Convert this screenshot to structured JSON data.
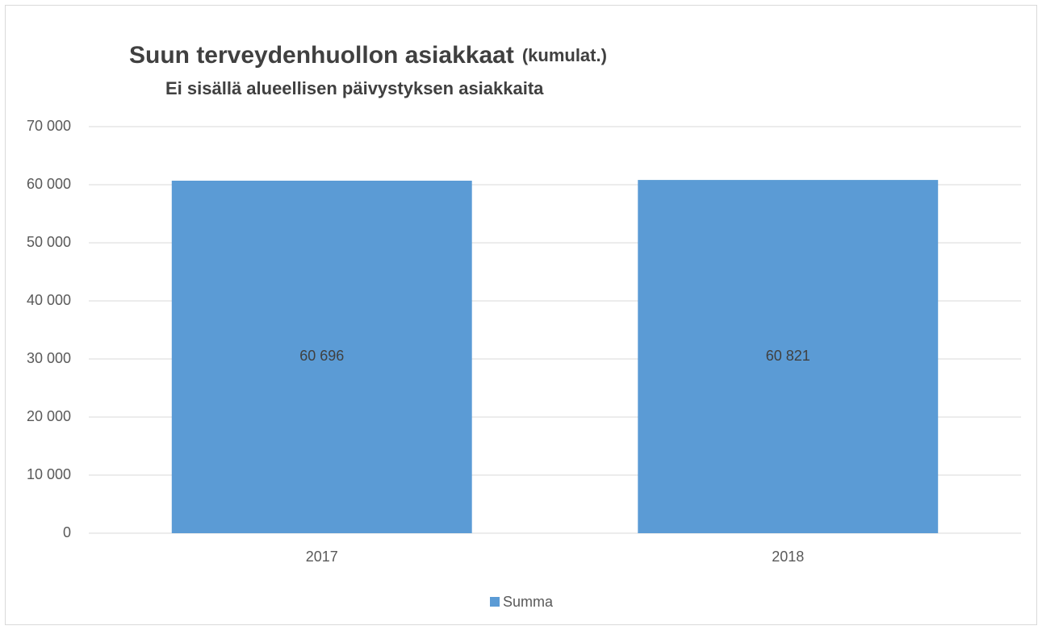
{
  "chart_data": {
    "type": "bar",
    "title": "Suun terveydenhuollon asiakkaat",
    "title_suffix": "(kumulat.)",
    "subtitle": "Ei sisällä alueellisen päivystyksen asiakkaita",
    "categories": [
      "2017",
      "2018"
    ],
    "series": [
      {
        "name": "Summa",
        "color": "#5b9bd5",
        "values": [
          60696,
          60821
        ],
        "value_labels": [
          "60 696",
          "60 821"
        ]
      }
    ],
    "ylim": [
      0,
      70000
    ],
    "yticks": [
      0,
      {
        "value": 10000,
        "label": "10 000"
      },
      {
        "value": 20000,
        "label": "20 000"
      },
      {
        "value": 30000,
        "label": "30 000"
      },
      {
        "value": 40000,
        "label": "40 000"
      },
      {
        "value": 50000,
        "label": "50 000"
      },
      {
        "value": 60000,
        "label": "60 000"
      },
      {
        "value": 70000,
        "label": "70 000"
      }
    ],
    "grid": true,
    "legend": "bottom"
  }
}
